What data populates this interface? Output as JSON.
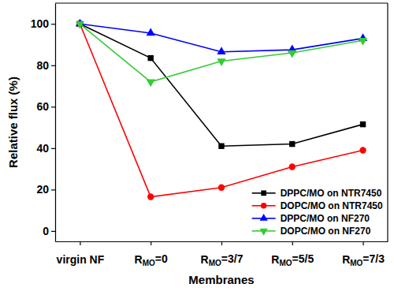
{
  "chart_data": {
    "type": "line",
    "x_label": "Membranes",
    "y_label": "Relative flux (%)",
    "categories": [
      "virgin NF",
      "RMO=0",
      "RMO=3/7",
      "RMO=5/5",
      "RMO=7/3"
    ],
    "series": [
      {
        "name": "DPPC/MO on NTR7450",
        "color": "#000000",
        "marker": "square",
        "line_style": "solid",
        "values": [
          100,
          83.5,
          41,
          42,
          51.5
        ]
      },
      {
        "name": "DOPC/MO on NTR7450",
        "color": "#ff0000",
        "marker": "circle",
        "line_style": "solid",
        "values": [
          100,
          16.5,
          21,
          31,
          39
        ]
      },
      {
        "name": "DPPC/MO on NF270",
        "color": "#0000ff",
        "marker": "triangle",
        "line_style": "solid",
        "values": [
          100,
          95.5,
          86.5,
          87.5,
          93
        ]
      },
      {
        "name": "DOPC/MO on NF270",
        "color": "#33cc33",
        "marker": "triangle-down",
        "line_style": "solid",
        "values": [
          100,
          72,
          82,
          86,
          92
        ]
      }
    ],
    "ylim": [
      -5,
      110
    ],
    "yticks": [
      0,
      20,
      40,
      60,
      80,
      100
    ],
    "grid": false,
    "legend": "lower right"
  }
}
